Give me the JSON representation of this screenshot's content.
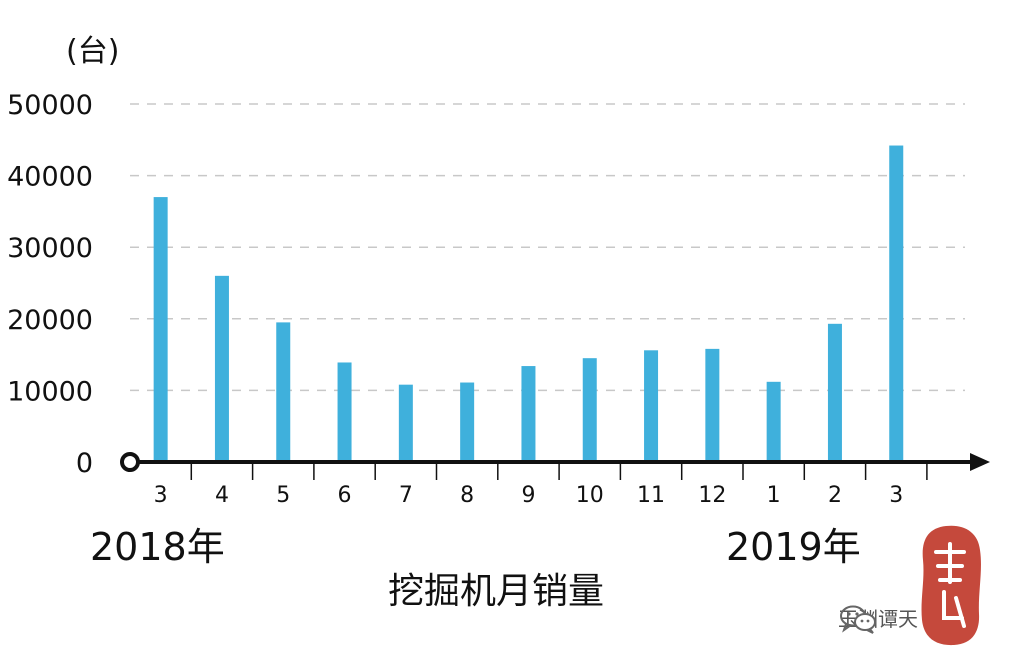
{
  "chart_data": {
    "type": "bar",
    "title": "挖掘机月销量",
    "ylabel": "(台)",
    "xlabel": "",
    "categories": [
      "3",
      "4",
      "5",
      "6",
      "7",
      "8",
      "9",
      "10",
      "11",
      "12",
      "1",
      "2",
      "3"
    ],
    "values": [
      37000,
      26000,
      19500,
      13900,
      10800,
      11100,
      13400,
      14500,
      15600,
      15800,
      11200,
      19300,
      44200
    ],
    "year_labels": [
      {
        "text": "2018年",
        "category_index": 0
      },
      {
        "text": "2019年",
        "category_index": 10
      }
    ],
    "ylim": [
      0,
      50000
    ],
    "yticks": [
      0,
      10000,
      20000,
      30000,
      40000,
      50000
    ],
    "ytick_labels": [
      "0",
      "10000",
      "20000",
      "30000",
      "40000",
      "50000"
    ],
    "grid": true,
    "bar_color": "#3fb0dc",
    "axis_color": "#111111",
    "grid_color": "#c8c8c8"
  },
  "watermark": {
    "icon": "wechat-icon",
    "text": "玉渊谭天",
    "seal_text": "谭天",
    "seal_color": "#c0392b"
  }
}
